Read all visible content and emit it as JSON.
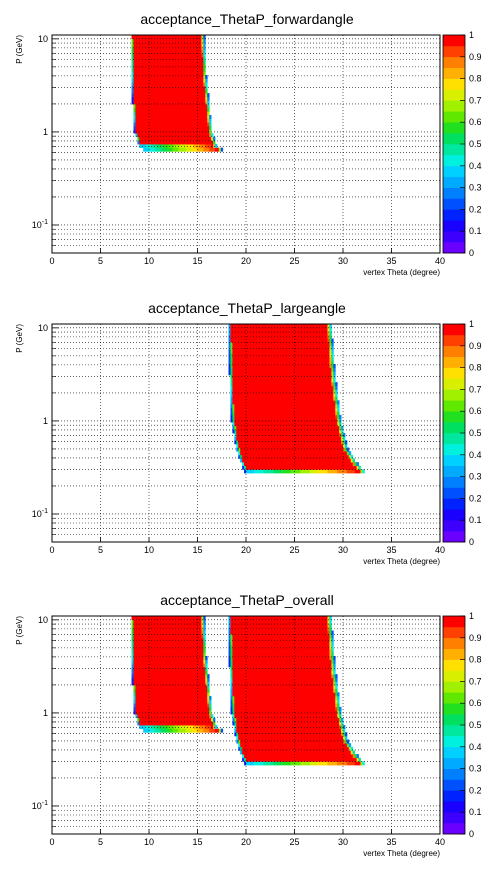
{
  "colors": {
    "palette": [
      "#6a00ff",
      "#3d00ff",
      "#1a00ff",
      "#0022ff",
      "#0050ff",
      "#0080ff",
      "#00aaff",
      "#00d0ff",
      "#00f0e0",
      "#00e8a0",
      "#00e060",
      "#20e020",
      "#60e800",
      "#a0f000",
      "#d8f000",
      "#ffe000",
      "#ffb000",
      "#ff8000",
      "#ff4000",
      "#ff0000"
    ],
    "grid": "#000000",
    "frame": "#000000"
  },
  "chart_data": [
    {
      "type": "heatmap",
      "title": "acceptance_ThetaP_forwardangle",
      "xlabel": "vertex Theta (degree)",
      "ylabel": "P (GeV)",
      "xlim": [
        0,
        40
      ],
      "ylim": [
        0.05,
        11
      ],
      "log_y": true,
      "x_ticks": [
        "0",
        "5",
        "10",
        "15",
        "20",
        "25",
        "30",
        "35",
        "40"
      ],
      "y_ticks": [
        "10^-1",
        "1",
        "10"
      ],
      "z_lim": [
        0,
        1
      ],
      "z_ticks": [
        "0",
        "0.1",
        "0.2",
        "0.3",
        "0.4",
        "0.5",
        "0.6",
        "0.7",
        "0.8",
        "0.9",
        "1"
      ],
      "grid": true,
      "regions": [
        {
          "theta_left": [
            [
              0.62,
              9.5
            ],
            [
              0.7,
              9.0
            ],
            [
              1.0,
              8.5
            ],
            [
              2.0,
              8.3
            ],
            [
              4.0,
              8.2
            ],
            [
              11,
              8.1
            ]
          ],
          "theta_right": [
            [
              0.62,
              17.8
            ],
            [
              0.7,
              17.0
            ],
            [
              1.0,
              16.5
            ],
            [
              2.0,
              16.2
            ],
            [
              4.0,
              15.9
            ],
            [
              11,
              15.7
            ]
          ],
          "p_min": 0.62,
          "p_max": 11,
          "value": 1.0
        }
      ]
    },
    {
      "type": "heatmap",
      "title": "acceptance_ThetaP_largeangle",
      "xlabel": "vertex Theta (degree)",
      "ylabel": "P (GeV)",
      "xlim": [
        0,
        40
      ],
      "ylim": [
        0.05,
        11
      ],
      "log_y": true,
      "x_ticks": [
        "0",
        "5",
        "10",
        "15",
        "20",
        "25",
        "30",
        "35",
        "40"
      ],
      "y_ticks": [
        "10^-1",
        "1",
        "10"
      ],
      "z_lim": [
        0,
        1
      ],
      "z_ticks": [
        "0",
        "0.1",
        "0.2",
        "0.3",
        "0.4",
        "0.5",
        "0.6",
        "0.7",
        "0.8",
        "0.9",
        "1"
      ],
      "grid": true,
      "regions": [
        {
          "theta_left": [
            [
              0.27,
              20.0
            ],
            [
              0.35,
              19.5
            ],
            [
              0.5,
              19.0
            ],
            [
              1.0,
              18.5
            ],
            [
              3.0,
              18.3
            ],
            [
              11,
              18.2
            ]
          ],
          "theta_right": [
            [
              0.27,
              32.5
            ],
            [
              0.35,
              31.5
            ],
            [
              0.5,
              30.5
            ],
            [
              1.0,
              29.8
            ],
            [
              3.0,
              29.2
            ],
            [
              11,
              28.8
            ]
          ],
          "p_min": 0.27,
          "p_max": 11,
          "value": 1.0
        }
      ]
    },
    {
      "type": "heatmap",
      "title": "acceptance_ThetaP_overall",
      "xlabel": "vertex Theta (degree)",
      "ylabel": "P (GeV)",
      "xlim": [
        0,
        40
      ],
      "ylim": [
        0.05,
        11
      ],
      "log_y": true,
      "x_ticks": [
        "0",
        "5",
        "10",
        "15",
        "20",
        "25",
        "30",
        "35",
        "40"
      ],
      "y_ticks": [
        "10^-1",
        "1",
        "10"
      ],
      "z_lim": [
        0,
        1
      ],
      "z_ticks": [
        "0",
        "0.1",
        "0.2",
        "0.3",
        "0.4",
        "0.5",
        "0.6",
        "0.7",
        "0.8",
        "0.9",
        "1"
      ],
      "grid": true,
      "regions": [
        {
          "theta_left": [
            [
              0.62,
              9.5
            ],
            [
              0.7,
              9.0
            ],
            [
              1.0,
              8.5
            ],
            [
              2.0,
              8.3
            ],
            [
              4.0,
              8.2
            ],
            [
              11,
              8.1
            ]
          ],
          "theta_right": [
            [
              0.62,
              17.8
            ],
            [
              0.7,
              17.0
            ],
            [
              1.0,
              16.5
            ],
            [
              2.0,
              16.2
            ],
            [
              4.0,
              15.9
            ],
            [
              11,
              15.7
            ]
          ],
          "p_min": 0.62,
          "p_max": 11,
          "value": 1.0
        },
        {
          "theta_left": [
            [
              0.27,
              20.0
            ],
            [
              0.35,
              19.5
            ],
            [
              0.5,
              19.0
            ],
            [
              1.0,
              18.5
            ],
            [
              3.0,
              18.3
            ],
            [
              11,
              18.2
            ]
          ],
          "theta_right": [
            [
              0.27,
              32.5
            ],
            [
              0.35,
              31.5
            ],
            [
              0.5,
              30.5
            ],
            [
              1.0,
              29.8
            ],
            [
              3.0,
              29.2
            ],
            [
              11,
              28.8
            ]
          ],
          "p_min": 0.27,
          "p_max": 11,
          "value": 1.0
        }
      ]
    }
  ]
}
